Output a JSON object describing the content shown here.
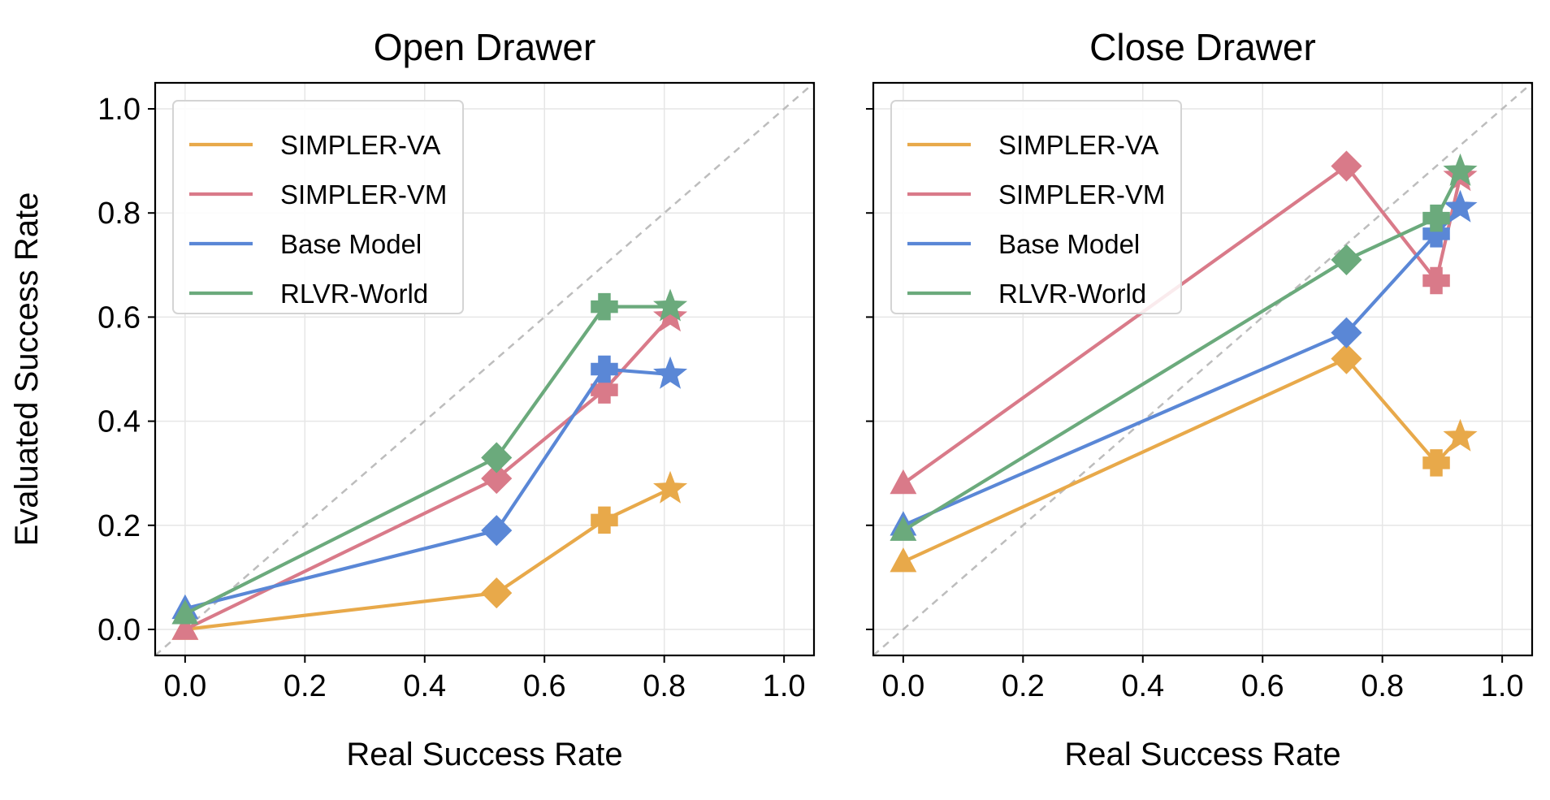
{
  "chart_data": [
    {
      "type": "line",
      "title": "Open Drawer",
      "xlabel": "Real Success Rate",
      "ylabel": "Evaluated Success Rate",
      "xlim": [
        -0.05,
        1.05
      ],
      "ylim": [
        -0.05,
        1.05
      ],
      "xticks": [
        "0.0",
        "0.2",
        "0.4",
        "0.6",
        "0.8",
        "1.0"
      ],
      "yticks": [
        "0.0",
        "0.2",
        "0.4",
        "0.6",
        "0.8",
        "1.0"
      ],
      "grid": true,
      "diagonal_reference": true,
      "legend_position": "top-left",
      "x": [
        0.0,
        0.52,
        0.7,
        0.81
      ],
      "markers": [
        "triangle",
        "diamond",
        "plus",
        "star"
      ],
      "series": [
        {
          "name": "SIMPLER-VA",
          "color": "#E8A94A",
          "values": [
            0.0,
            0.07,
            0.21,
            0.27
          ]
        },
        {
          "name": "SIMPLER-VM",
          "color": "#D97A89",
          "values": [
            0.0,
            0.29,
            0.46,
            0.6
          ]
        },
        {
          "name": "Base Model",
          "color": "#5A87D6",
          "values": [
            0.04,
            0.19,
            0.5,
            0.49
          ]
        },
        {
          "name": "RLVR-World",
          "color": "#6BAA7C",
          "values": [
            0.03,
            0.33,
            0.62,
            0.62
          ]
        }
      ]
    },
    {
      "type": "line",
      "title": "Close Drawer",
      "xlabel": "Real Success Rate",
      "ylabel": "",
      "xlim": [
        -0.05,
        1.05
      ],
      "ylim": [
        -0.05,
        1.05
      ],
      "xticks": [
        "0.0",
        "0.2",
        "0.4",
        "0.6",
        "0.8",
        "1.0"
      ],
      "yticks": [],
      "grid": true,
      "diagonal_reference": true,
      "legend_position": "top-left",
      "x": [
        0.0,
        0.74,
        0.89,
        0.93
      ],
      "markers": [
        "triangle",
        "diamond",
        "plus",
        "star"
      ],
      "series": [
        {
          "name": "SIMPLER-VA",
          "color": "#E8A94A",
          "values": [
            0.13,
            0.52,
            0.32,
            0.37
          ]
        },
        {
          "name": "SIMPLER-VM",
          "color": "#D97A89",
          "values": [
            0.28,
            0.89,
            0.67,
            0.87
          ]
        },
        {
          "name": "Base Model",
          "color": "#5A87D6",
          "values": [
            0.2,
            0.57,
            0.76,
            0.81
          ]
        },
        {
          "name": "RLVR-World",
          "color": "#6BAA7C",
          "values": [
            0.19,
            0.71,
            0.79,
            0.88
          ]
        }
      ]
    }
  ]
}
